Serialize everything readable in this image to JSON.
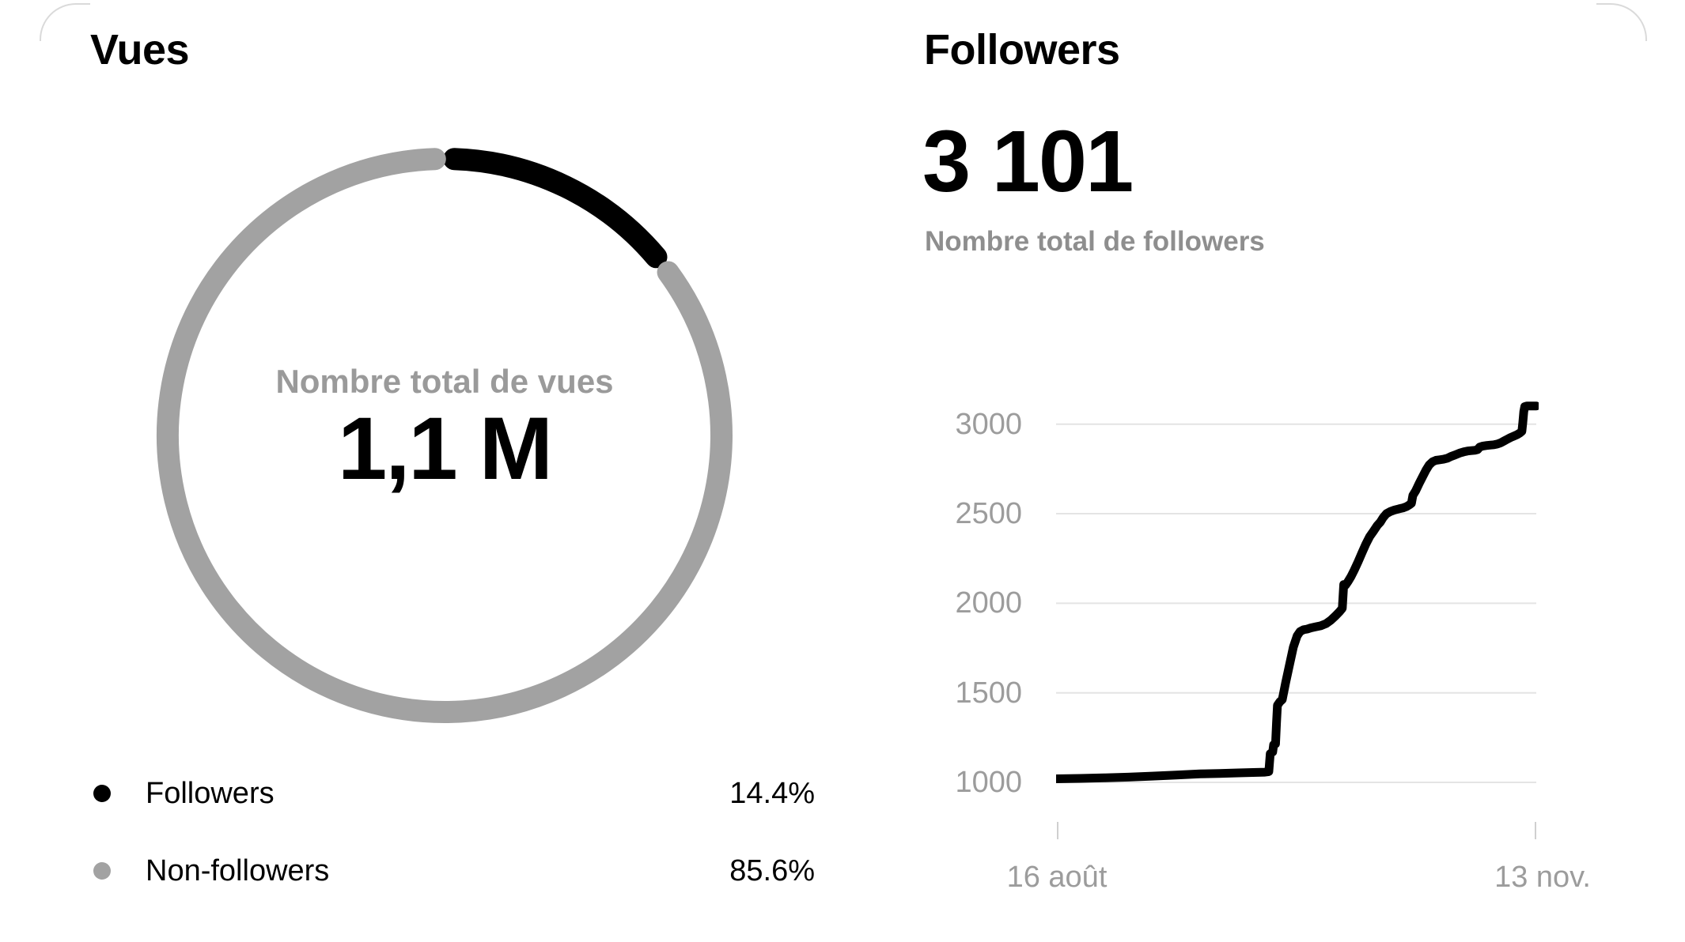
{
  "colors": {
    "black": "#000000",
    "gray_segment": "#a2a2a2",
    "subtitle_gray": "#8e8e8e",
    "axis_gray": "#9c9c9c",
    "grid": "#e4e4e4",
    "tick": "#d0d0d0"
  },
  "views_panel": {
    "title": "Vues",
    "legend": [
      {
        "label": "Followers",
        "value": "14.4%",
        "color": "#000000"
      },
      {
        "label": "Non-followers",
        "value": "85.6%",
        "color": "#a2a2a2"
      }
    ]
  },
  "followers_panel": {
    "title": "Followers",
    "total": "3 101",
    "subtitle": "Nombre total de followers"
  },
  "chart_data": [
    {
      "type": "pie",
      "variant": "donut",
      "title": "Vues",
      "center_label": "Nombre total de vues",
      "center_value": "1,1 M",
      "unit": "%",
      "slices": [
        {
          "label": "Followers",
          "value": 14.4,
          "color": "#000000"
        },
        {
          "label": "Non-followers",
          "value": 85.6,
          "color": "#a2a2a2"
        }
      ],
      "start_angle_deg": 0,
      "gap_degrees": 4,
      "stroke_width": 28,
      "legend_position": "bottom"
    },
    {
      "type": "line",
      "title": "Followers",
      "total": "3 101",
      "subtitle": "Nombre total de followers",
      "x_tick_labels": [
        "16 août",
        "13 nov."
      ],
      "y_ticks": [
        1000,
        1500,
        2000,
        2500,
        3000
      ],
      "ylim": [
        1000,
        3160
      ],
      "grid": true,
      "line_color": "#000000",
      "grid_color": "#e4e4e4",
      "series": [
        {
          "name": "Followers",
          "points": [
            [
              0,
              1020
            ],
            [
              0.05,
              1022
            ],
            [
              0.1,
              1025
            ],
            [
              0.15,
              1029
            ],
            [
              0.2,
              1035
            ],
            [
              0.25,
              1041
            ],
            [
              0.3,
              1047
            ],
            [
              0.34,
              1050
            ],
            [
              0.38,
              1053
            ],
            [
              0.41,
              1055
            ],
            [
              0.435,
              1057
            ],
            [
              0.443,
              1060
            ],
            [
              0.446,
              1160
            ],
            [
              0.451,
              1170
            ],
            [
              0.453,
              1210
            ],
            [
              0.457,
              1215
            ],
            [
              0.459,
              1330
            ],
            [
              0.461,
              1430
            ],
            [
              0.466,
              1450
            ],
            [
              0.471,
              1462
            ],
            [
              0.478,
              1555
            ],
            [
              0.486,
              1655
            ],
            [
              0.494,
              1755
            ],
            [
              0.502,
              1818
            ],
            [
              0.508,
              1842
            ],
            [
              0.515,
              1852
            ],
            [
              0.523,
              1856
            ],
            [
              0.53,
              1862
            ],
            [
              0.54,
              1868
            ],
            [
              0.551,
              1874
            ],
            [
              0.562,
              1886
            ],
            [
              0.572,
              1905
            ],
            [
              0.582,
              1930
            ],
            [
              0.59,
              1952
            ],
            [
              0.596,
              1972
            ],
            [
              0.599,
              2105
            ],
            [
              0.603,
              2102
            ],
            [
              0.608,
              2122
            ],
            [
              0.614,
              2148
            ],
            [
              0.621,
              2185
            ],
            [
              0.629,
              2232
            ],
            [
              0.637,
              2282
            ],
            [
              0.645,
              2330
            ],
            [
              0.653,
              2372
            ],
            [
              0.661,
              2402
            ],
            [
              0.669,
              2435
            ],
            [
              0.675,
              2452
            ],
            [
              0.681,
              2478
            ],
            [
              0.688,
              2500
            ],
            [
              0.696,
              2512
            ],
            [
              0.705,
              2521
            ],
            [
              0.714,
              2527
            ],
            [
              0.722,
              2532
            ],
            [
              0.73,
              2540
            ],
            [
              0.736,
              2550
            ],
            [
              0.74,
              2558
            ],
            [
              0.743,
              2602
            ],
            [
              0.749,
              2628
            ],
            [
              0.756,
              2668
            ],
            [
              0.763,
              2705
            ],
            [
              0.77,
              2742
            ],
            [
              0.777,
              2772
            ],
            [
              0.784,
              2790
            ],
            [
              0.791,
              2798
            ],
            [
              0.799,
              2801
            ],
            [
              0.807,
              2804
            ],
            [
              0.815,
              2810
            ],
            [
              0.822,
              2819
            ],
            [
              0.831,
              2828
            ],
            [
              0.84,
              2838
            ],
            [
              0.849,
              2845
            ],
            [
              0.857,
              2850
            ],
            [
              0.865,
              2852
            ],
            [
              0.872,
              2854
            ],
            [
              0.878,
              2858
            ],
            [
              0.882,
              2872
            ],
            [
              0.889,
              2878
            ],
            [
              0.897,
              2881
            ],
            [
              0.905,
              2883
            ],
            [
              0.912,
              2885
            ],
            [
              0.919,
              2889
            ],
            [
              0.926,
              2896
            ],
            [
              0.933,
              2906
            ],
            [
              0.94,
              2916
            ],
            [
              0.947,
              2926
            ],
            [
              0.953,
              2933
            ],
            [
              0.96,
              2941
            ],
            [
              0.966,
              2951
            ],
            [
              0.97,
              2960
            ],
            [
              0.972,
              3010
            ],
            [
              0.974,
              3070
            ],
            [
              0.976,
              3098
            ],
            [
              0.98,
              3101
            ],
            [
              1,
              3101
            ]
          ]
        }
      ]
    }
  ]
}
